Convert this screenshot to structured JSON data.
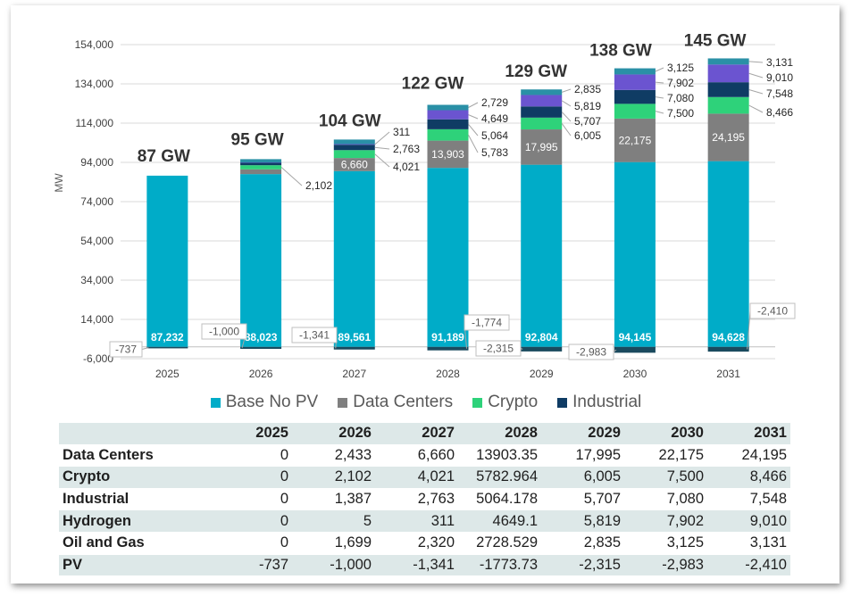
{
  "chart_data": {
    "type": "bar",
    "stacked": true,
    "ylabel": "MW",
    "ylim": [
      -6000,
      154000
    ],
    "yticks": [
      "-6,000",
      "14,000",
      "34,000",
      "54,000",
      "74,000",
      "94,000",
      "114,000",
      "134,000",
      "154,000"
    ],
    "categories": [
      "2025",
      "2026",
      "2027",
      "2028",
      "2029",
      "2030",
      "2031"
    ],
    "totals": [
      "87 GW",
      "95 GW",
      "104 GW",
      "122 GW",
      "129 GW",
      "138 GW",
      "145 GW"
    ],
    "series": [
      {
        "name": "Base No PV",
        "color": "#00acc8",
        "values": [
          87232,
          88023,
          89561,
          91189,
          92804,
          94145,
          94628
        ],
        "labels": [
          "87,232",
          "88,023",
          "89,561",
          "91,189",
          "92,804",
          "94,145",
          "94,628"
        ]
      },
      {
        "name": "Data Centers",
        "color": "#7f7f7f",
        "values": [
          0,
          2433,
          6660,
          13903,
          17995,
          22175,
          24195
        ],
        "labels": [
          "",
          "",
          "6,660",
          "13,903",
          "17,995",
          "22,175",
          "24,195"
        ]
      },
      {
        "name": "Crypto",
        "color": "#2ed27a",
        "values": [
          0,
          2102,
          4021,
          5783,
          6005,
          7500,
          8466
        ],
        "labels": [
          "",
          "2,102",
          "4,021",
          "5,783",
          "6,005",
          "7,500",
          "8,466"
        ]
      },
      {
        "name": "Industrial",
        "color": "#0f3c64",
        "values": [
          0,
          1387,
          2763,
          5064,
          5707,
          7080,
          7548
        ],
        "labels": [
          "",
          "",
          "2,763",
          "5,064",
          "5,707",
          "7,080",
          "7,548"
        ]
      },
      {
        "name": "Hydrogen",
        "color": "#6b54d0",
        "values": [
          0,
          5,
          311,
          4649,
          5819,
          7902,
          9010
        ],
        "labels": [
          "",
          "",
          "311",
          "4,649",
          "5,819",
          "7,902",
          "9,010"
        ]
      },
      {
        "name": "Oil and Gas",
        "color": "#2a90a6",
        "values": [
          0,
          1699,
          2320,
          2729,
          2835,
          3125,
          3131
        ],
        "labels": [
          "",
          "",
          "",
          "2,729",
          "2,835",
          "3,125",
          "3,131"
        ]
      },
      {
        "name": "PV",
        "color": "#1a4a5e",
        "values": [
          -737,
          -1000,
          -1341,
          -1774,
          -2315,
          -2983,
          -2410
        ],
        "labels": [
          "-737",
          "-1,000",
          "-1,341",
          "-1,774",
          "-2,315",
          "-2,983",
          "-2,410"
        ]
      }
    ],
    "legend": [
      "Base No PV",
      "Data Centers",
      "Crypto",
      "Industrial"
    ],
    "legend_placement": "bottom"
  },
  "table": {
    "header": [
      "",
      "2025",
      "2026",
      "2027",
      "2028",
      "2029",
      "2030",
      "2031"
    ],
    "rows": [
      {
        "label": "Data Centers",
        "values": [
          "0",
          "2,433",
          "6,660",
          "13903.35",
          "17,995",
          "22,175",
          "24,195"
        ]
      },
      {
        "label": "Crypto",
        "values": [
          "0",
          "2,102",
          "4,021",
          "5782.964",
          "6,005",
          "7,500",
          "8,466"
        ]
      },
      {
        "label": "Industrial",
        "values": [
          "0",
          "1,387",
          "2,763",
          "5064.178",
          "5,707",
          "7,080",
          "7,548"
        ]
      },
      {
        "label": "Hydrogen",
        "values": [
          "0",
          "5",
          "311",
          "4649.1",
          "5,819",
          "7,902",
          "9,010"
        ]
      },
      {
        "label": "Oil and Gas",
        "values": [
          "0",
          "1,699",
          "2,320",
          "2728.529",
          "2,835",
          "3,125",
          "3,131"
        ]
      },
      {
        "label": "PV",
        "values": [
          "-737",
          "-1,000",
          "-1,341",
          "-1773.73",
          "-2,315",
          "-2,983",
          "-2,410"
        ]
      }
    ]
  }
}
